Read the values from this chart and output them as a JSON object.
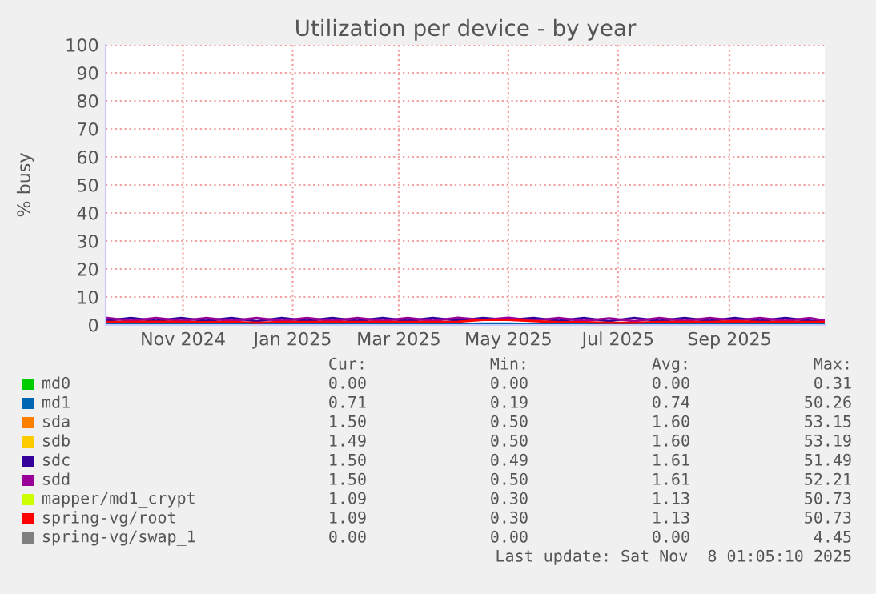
{
  "chart_data": {
    "type": "line",
    "title": "Utilization per device - by year",
    "ylabel": "% busy",
    "x": [
      "2024-10-04",
      "2024-10-18",
      "2024-11-01",
      "2024-11-15",
      "2024-11-29",
      "2024-12-13",
      "2024-12-27",
      "2025-01-10",
      "2025-01-24",
      "2025-02-07",
      "2025-02-21",
      "2025-03-07",
      "2025-03-21",
      "2025-04-04",
      "2025-04-18",
      "2025-05-02",
      "2025-05-16",
      "2025-05-30",
      "2025-06-13",
      "2025-06-27",
      "2025-07-11",
      "2025-07-25",
      "2025-08-08",
      "2025-08-22",
      "2025-09-05",
      "2025-09-19",
      "2025-10-03",
      "2025-10-17",
      "2025-10-31",
      "2025-11-08"
    ],
    "series": [
      {
        "name": "md0",
        "color": "#00cc00",
        "values": [
          null,
          null,
          null,
          null,
          null,
          null,
          null,
          null,
          null,
          null,
          null,
          null,
          null,
          null,
          null,
          null,
          null,
          null,
          null,
          null,
          null,
          null,
          null,
          null,
          null,
          null,
          null,
          null,
          null,
          null
        ]
      },
      {
        "name": "md1",
        "color": "#0066b3",
        "values": [
          0.4,
          0.4,
          0.4,
          0.4,
          0.4,
          0.4,
          0.4,
          0.4,
          0.4,
          0.4,
          0.4,
          0.4,
          0.4,
          0.4,
          0.4,
          0.5,
          0.5,
          0.4,
          0.4,
          0.4,
          0.4,
          0.4,
          0.4,
          0.4,
          0.4,
          0.4,
          0.4,
          0.4,
          0.4,
          0.4
        ]
      },
      {
        "name": "sda",
        "color": "#ff8000",
        "values": [
          null,
          null,
          null,
          null,
          null,
          null,
          null,
          null,
          null,
          null,
          null,
          null,
          null,
          null,
          null,
          null,
          null,
          null,
          null,
          null,
          null,
          null,
          null,
          null,
          null,
          null,
          null,
          null,
          null,
          null
        ]
      },
      {
        "name": "sdb",
        "color": "#ffcc00",
        "values": [
          null,
          null,
          null,
          null,
          null,
          null,
          null,
          null,
          null,
          null,
          null,
          null,
          null,
          null,
          null,
          null,
          null,
          null,
          null,
          null,
          null,
          null,
          null,
          null,
          null,
          null,
          null,
          null,
          null,
          null
        ]
      },
      {
        "name": "sdc",
        "color": "#330099",
        "values": [
          1.5,
          2.5,
          1.5,
          2.5,
          1.5,
          2.5,
          1.4,
          2.5,
          1.5,
          2.5,
          1.5,
          2.5,
          1.5,
          2.5,
          1.6,
          2.5,
          1.8,
          2.5,
          1.5,
          2.5,
          1.4,
          2.5,
          1.5,
          2.5,
          1.5,
          2.5,
          1.5,
          2.5,
          1.5,
          1.5
        ]
      },
      {
        "name": "sdd",
        "color": "#990099",
        "values": [
          2.6,
          1.5,
          2.5,
          1.5,
          2.5,
          1.5,
          2.5,
          1.5,
          2.5,
          1.5,
          2.5,
          1.5,
          2.5,
          1.5,
          2.6,
          1.8,
          2.6,
          1.6,
          2.5,
          1.5,
          2.4,
          1.4,
          2.5,
          1.5,
          2.5,
          1.6,
          2.5,
          1.5,
          2.5,
          1.5
        ]
      },
      {
        "name": "mapper/md1_crypt",
        "color": "#ccff00",
        "values": [
          null,
          null,
          null,
          null,
          null,
          null,
          null,
          null,
          null,
          null,
          null,
          null,
          null,
          null,
          null,
          null,
          null,
          null,
          null,
          null,
          null,
          null,
          null,
          null,
          null,
          null,
          null,
          null,
          null,
          null
        ]
      },
      {
        "name": "spring-vg/root",
        "color": "#ff0000",
        "values": [
          1.1,
          1.1,
          1.2,
          1.1,
          1.0,
          1.1,
          0.8,
          1.1,
          1.1,
          1.1,
          1.1,
          1.1,
          1.1,
          1.1,
          1.2,
          1.8,
          1.8,
          1.4,
          1.0,
          1.0,
          0.8,
          0.8,
          1.1,
          1.1,
          1.1,
          1.3,
          1.1,
          1.1,
          1.1,
          1.1
        ]
      },
      {
        "name": "spring-vg/swap_1",
        "color": "#808080",
        "values": [
          null,
          null,
          null,
          null,
          null,
          null,
          null,
          null,
          null,
          null,
          null,
          null,
          null,
          null,
          null,
          null,
          null,
          null,
          null,
          null,
          null,
          null,
          null,
          null,
          null,
          null,
          null,
          null,
          null,
          null
        ]
      }
    ],
    "xlim": [
      "2024-10-04",
      "2025-11-08"
    ],
    "xticks": [
      {
        "value": "2024-11-16",
        "label": "Nov 2024"
      },
      {
        "value": "2025-01-16",
        "label": "Jan 2025"
      },
      {
        "value": "2025-03-16",
        "label": "Mar 2025"
      },
      {
        "value": "2025-05-16",
        "label": "May 2025"
      },
      {
        "value": "2025-07-16",
        "label": "Jul 2025"
      },
      {
        "value": "2025-09-16",
        "label": "Sep 2025"
      }
    ],
    "ylim": [
      0,
      100
    ],
    "yticks": [
      0,
      10,
      20,
      30,
      40,
      50,
      60,
      70,
      80,
      90,
      100
    ],
    "grid": true,
    "legend": "bottom",
    "marker": "none",
    "line_style": "solid",
    "annotations": [
      "Cur:",
      "Min:",
      "Avg:",
      "Max:",
      "0.00",
      "0.00",
      "0.00",
      "0.31",
      "0.71",
      "0.19",
      "0.74",
      "50.26",
      "1.50",
      "0.50",
      "1.60",
      "53.15",
      "1.49",
      "0.50",
      "1.60",
      "53.19",
      "1.50",
      "0.49",
      "1.61",
      "51.49",
      "1.50",
      "0.50",
      "1.61",
      "52.21",
      "1.09",
      "0.30",
      "1.13",
      "50.73",
      "1.09",
      "0.30",
      "1.13",
      "50.73",
      "0.00",
      "0.00",
      "0.00",
      "4.45",
      "Last update: Sat Nov  8 01:05:10 2025"
    ]
  }
}
